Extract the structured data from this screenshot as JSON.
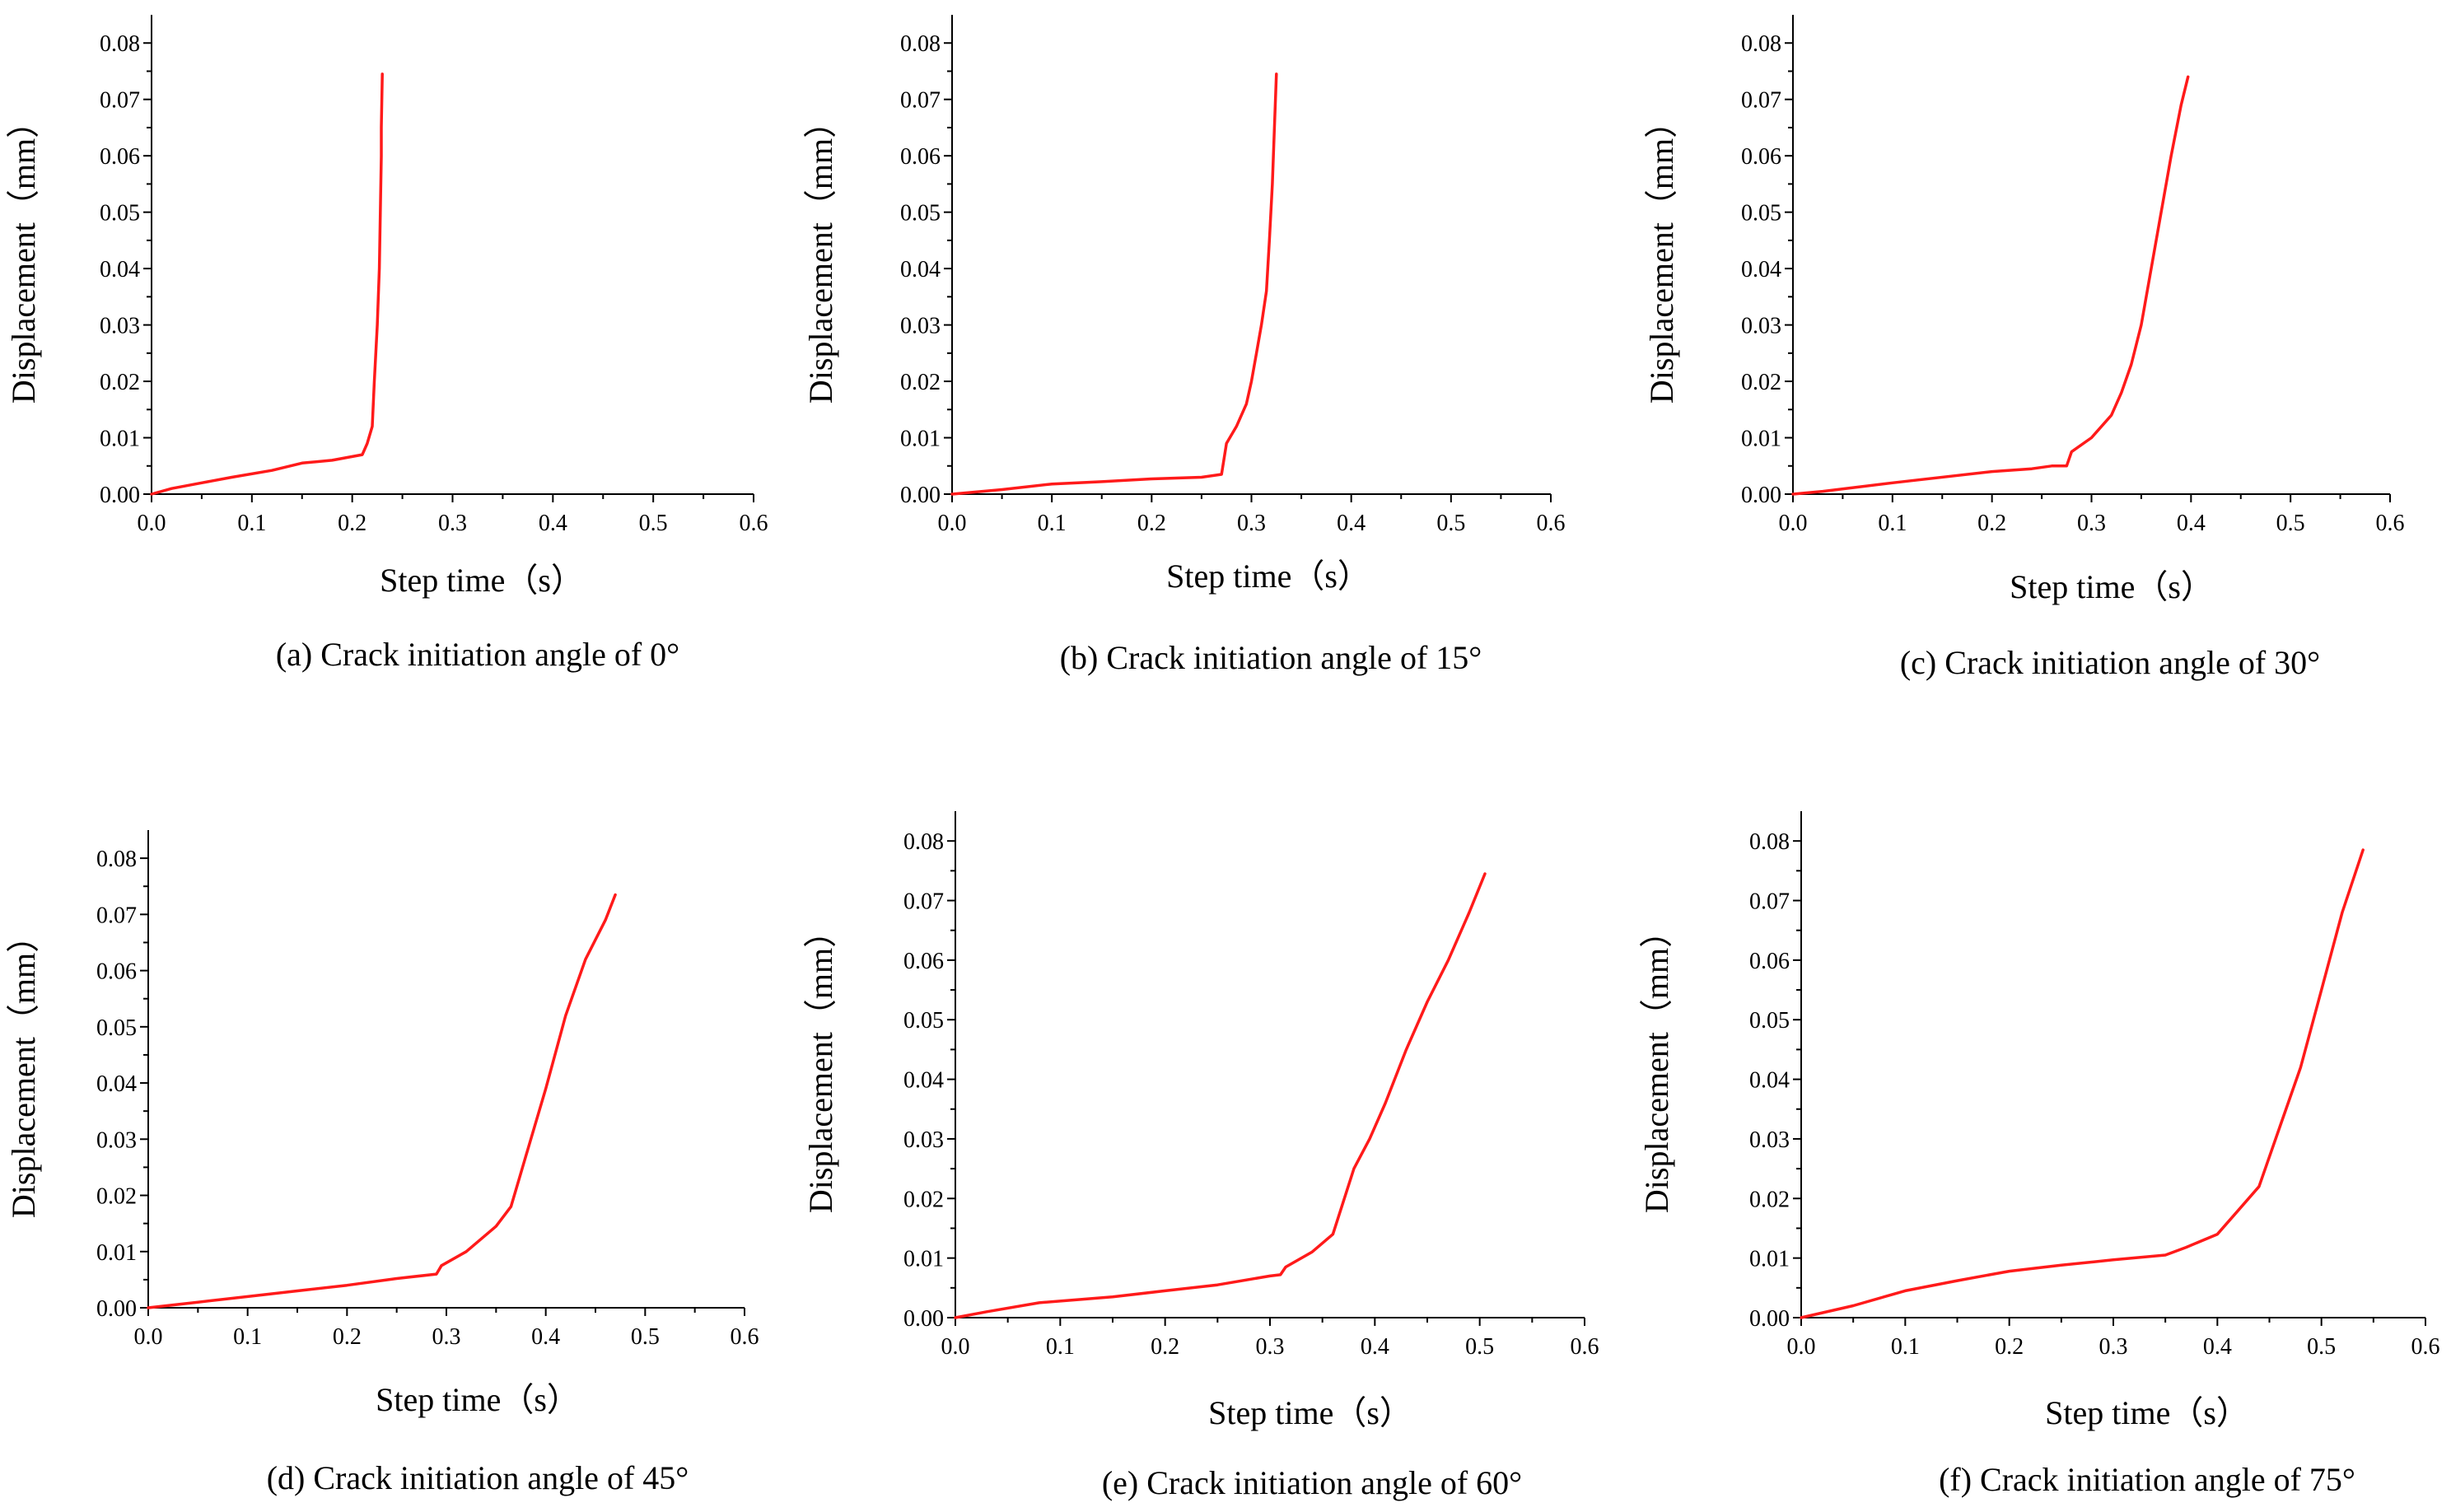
{
  "figure": {
    "layout": "2 rows x 3 columns",
    "line_color": "#ff1a1a"
  },
  "chart_data": [
    {
      "type": "line",
      "caption": "(a) Crack initiation angle of 0°",
      "xlabel": "Step time（s）",
      "ylabel": "Displacement（mm）",
      "xlim": [
        0.0,
        0.6
      ],
      "ylim": [
        0.0,
        0.085
      ],
      "xticks": [
        "0.0",
        "0.1",
        "0.2",
        "0.3",
        "0.4",
        "0.5",
        "0.6"
      ],
      "yticks": [
        "0.00",
        "0.01",
        "0.02",
        "0.03",
        "0.04",
        "0.05",
        "0.06",
        "0.07",
        "0.08"
      ],
      "series": [
        {
          "name": "Crack initiation angle of 0°",
          "x": [
            0.0,
            0.02,
            0.05,
            0.08,
            0.12,
            0.15,
            0.18,
            0.21,
            0.215,
            0.22,
            0.222,
            0.225,
            0.227,
            0.228,
            0.229,
            0.229,
            0.23
          ],
          "y": [
            0.0,
            0.001,
            0.002,
            0.003,
            0.0042,
            0.0055,
            0.006,
            0.007,
            0.009,
            0.012,
            0.02,
            0.03,
            0.04,
            0.05,
            0.06,
            0.065,
            0.0745
          ]
        }
      ]
    },
    {
      "type": "line",
      "caption": "(b) Crack initiation angle of 15°",
      "xlabel": "Step time（s）",
      "ylabel": "Displacement（mm）",
      "xlim": [
        0.0,
        0.6
      ],
      "ylim": [
        0.0,
        0.085
      ],
      "xticks": [
        "0.0",
        "0.1",
        "0.2",
        "0.3",
        "0.4",
        "0.5",
        "0.6"
      ],
      "yticks": [
        "0.00",
        "0.01",
        "0.02",
        "0.03",
        "0.04",
        "0.05",
        "0.06",
        "0.07",
        "0.08"
      ],
      "series": [
        {
          "name": "Crack initiation angle of 15°",
          "x": [
            0.0,
            0.05,
            0.1,
            0.15,
            0.2,
            0.25,
            0.27,
            0.275,
            0.285,
            0.295,
            0.3,
            0.305,
            0.31,
            0.315,
            0.318,
            0.321,
            0.323,
            0.325
          ],
          "y": [
            0.0,
            0.0008,
            0.0018,
            0.0022,
            0.0027,
            0.003,
            0.0035,
            0.009,
            0.012,
            0.016,
            0.02,
            0.025,
            0.03,
            0.036,
            0.045,
            0.055,
            0.065,
            0.0745
          ]
        }
      ]
    },
    {
      "type": "line",
      "caption": "(c) Crack initiation angle of 30°",
      "xlabel": "Step time（s）",
      "ylabel": "Displacement（mm）",
      "xlim": [
        0.0,
        0.6
      ],
      "ylim": [
        0.0,
        0.085
      ],
      "xticks": [
        "0.0",
        "0.1",
        "0.2",
        "0.3",
        "0.4",
        "0.5",
        "0.6"
      ],
      "yticks": [
        "0.00",
        "0.01",
        "0.02",
        "0.03",
        "0.04",
        "0.05",
        "0.06",
        "0.07",
        "0.08"
      ],
      "series": [
        {
          "name": "Crack initiation angle of 30°",
          "x": [
            0.0,
            0.03,
            0.1,
            0.2,
            0.24,
            0.26,
            0.275,
            0.28,
            0.3,
            0.32,
            0.33,
            0.34,
            0.35,
            0.36,
            0.37,
            0.38,
            0.39,
            0.397
          ],
          "y": [
            0.0,
            0.0005,
            0.002,
            0.004,
            0.0045,
            0.005,
            0.005,
            0.0075,
            0.01,
            0.014,
            0.018,
            0.023,
            0.03,
            0.04,
            0.05,
            0.06,
            0.069,
            0.074
          ]
        }
      ]
    },
    {
      "type": "line",
      "caption": "(d) Crack initiation angle of 45°",
      "xlabel": "Step time（s）",
      "ylabel": "Displacement（mm）",
      "xlim": [
        0.0,
        0.6
      ],
      "ylim": [
        0.0,
        0.085
      ],
      "xticks": [
        "0.0",
        "0.1",
        "0.2",
        "0.3",
        "0.4",
        "0.5",
        "0.6"
      ],
      "yticks": [
        "0.00",
        "0.01",
        "0.02",
        "0.03",
        "0.04",
        "0.05",
        "0.06",
        "0.07",
        "0.08"
      ],
      "series": [
        {
          "name": "Crack initiation angle of 45°",
          "x": [
            0.0,
            0.05,
            0.1,
            0.15,
            0.2,
            0.25,
            0.29,
            0.295,
            0.32,
            0.35,
            0.365,
            0.38,
            0.4,
            0.42,
            0.44,
            0.46,
            0.47
          ],
          "y": [
            0.0,
            0.001,
            0.002,
            0.003,
            0.004,
            0.0052,
            0.006,
            0.0075,
            0.01,
            0.0145,
            0.018,
            0.027,
            0.039,
            0.052,
            0.062,
            0.069,
            0.0735
          ]
        }
      ]
    },
    {
      "type": "line",
      "caption": "(e) Crack initiation angle of 60°",
      "xlabel": "Step time（s）",
      "ylabel": "Displacement（mm）",
      "xlim": [
        0.0,
        0.6
      ],
      "ylim": [
        0.0,
        0.085
      ],
      "xticks": [
        "0.0",
        "0.1",
        "0.2",
        "0.3",
        "0.4",
        "0.5",
        "0.6"
      ],
      "yticks": [
        "0.00",
        "0.01",
        "0.02",
        "0.03",
        "0.04",
        "0.05",
        "0.06",
        "0.07",
        "0.08"
      ],
      "series": [
        {
          "name": "Crack initiation angle of 60°",
          "x": [
            0.0,
            0.03,
            0.08,
            0.15,
            0.2,
            0.25,
            0.3,
            0.31,
            0.315,
            0.34,
            0.36,
            0.38,
            0.395,
            0.41,
            0.43,
            0.45,
            0.47,
            0.49,
            0.505
          ],
          "y": [
            0.0,
            0.001,
            0.0025,
            0.0035,
            0.0045,
            0.0055,
            0.007,
            0.0072,
            0.0085,
            0.011,
            0.014,
            0.025,
            0.03,
            0.036,
            0.045,
            0.053,
            0.06,
            0.068,
            0.0745
          ]
        }
      ]
    },
    {
      "type": "line",
      "caption": "(f) Crack initiation angle of 75°",
      "xlabel": "Step time（s）",
      "ylabel": "Displacement（mm）",
      "xlim": [
        0.0,
        0.6
      ],
      "ylim": [
        0.0,
        0.085
      ],
      "xticks": [
        "0.0",
        "0.1",
        "0.2",
        "0.3",
        "0.4",
        "0.5",
        "0.6"
      ],
      "yticks": [
        "0.00",
        "0.01",
        "0.02",
        "0.03",
        "0.04",
        "0.05",
        "0.06",
        "0.07",
        "0.08"
      ],
      "series": [
        {
          "name": "Crack initiation angle of 75°",
          "x": [
            0.0,
            0.05,
            0.1,
            0.15,
            0.2,
            0.25,
            0.3,
            0.35,
            0.37,
            0.4,
            0.42,
            0.44,
            0.46,
            0.48,
            0.5,
            0.52,
            0.54
          ],
          "y": [
            0.0,
            0.002,
            0.0045,
            0.0062,
            0.0078,
            0.0088,
            0.0097,
            0.0105,
            0.0118,
            0.014,
            0.018,
            0.022,
            0.032,
            0.042,
            0.055,
            0.068,
            0.0785
          ]
        }
      ]
    }
  ]
}
